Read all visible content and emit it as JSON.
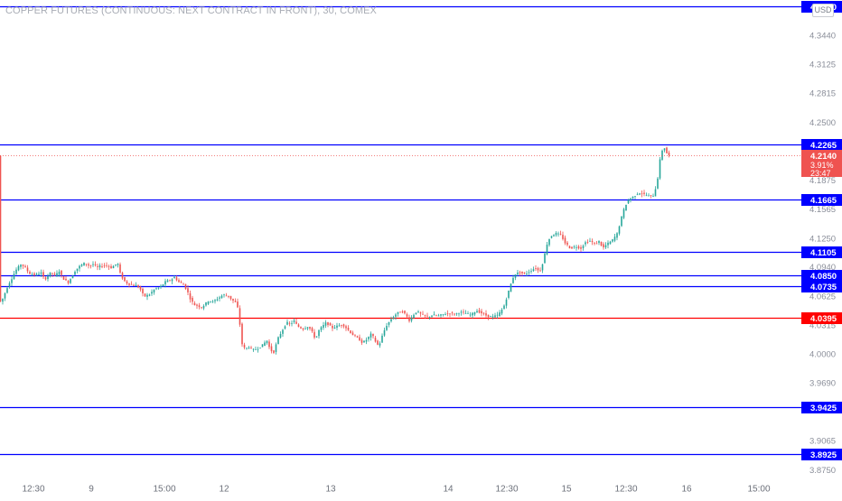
{
  "title": "COPPER FUTURES (CONTINUOUS: NEXT CONTRACT IN FRONT), 30, COMEX",
  "currency": "USD",
  "colors": {
    "up": "#26a69a",
    "down": "#ef5350",
    "hline_blue": "#0000ff",
    "hline_red": "#ff0000",
    "axis_text": "#8a8e99",
    "price_line": "#ef5350"
  },
  "chart_data": {
    "type": "candlestick",
    "title": "COPPER FUTURES (CONTINUOUS: NEXT CONTRACT IN FRONT), 30, COMEX",
    "ylim": [
      3.87,
      4.38
    ],
    "y_ticks": [
      "4.3440",
      "4.3125",
      "4.2815",
      "4.2500",
      "4.1875",
      "4.1565",
      "4.1250",
      "4.0940",
      "4.0625",
      "4.0315",
      "4.0000",
      "3.9690",
      "3.9065",
      "3.8750"
    ],
    "x_ticks": [
      "12:30",
      "9",
      "15:00",
      "12",
      "13",
      "14",
      "12:30",
      "15",
      "12:30",
      "16",
      "15:00"
    ],
    "horizontal_lines": [
      {
        "label": "4.3750",
        "price": 4.375,
        "color": "blue"
      },
      {
        "label": "4.2265",
        "price": 4.2265,
        "color": "blue"
      },
      {
        "label": "4.1665",
        "price": 4.1665,
        "color": "blue"
      },
      {
        "label": "4.1105",
        "price": 4.1105,
        "color": "blue"
      },
      {
        "label": "4.0850",
        "price": 4.085,
        "color": "blue"
      },
      {
        "label": "4.0735",
        "price": 4.0735,
        "color": "blue"
      },
      {
        "label": "4.0395",
        "price": 4.0395,
        "color": "red"
      },
      {
        "label": "3.9425",
        "price": 3.9425,
        "color": "blue"
      },
      {
        "label": "3.8925",
        "price": 3.8925,
        "color": "blue"
      }
    ],
    "last_price": {
      "price": 4.214,
      "label": "4.2140",
      "change": "3.91%",
      "countdown": "23:47"
    },
    "path_points": [
      [
        0,
        4.055
      ],
      [
        4,
        4.06
      ],
      [
        10,
        4.075
      ],
      [
        14,
        4.082
      ],
      [
        18,
        4.09
      ],
      [
        24,
        4.097
      ],
      [
        28,
        4.094
      ],
      [
        33,
        4.087
      ],
      [
        40,
        4.085
      ],
      [
        46,
        4.088
      ],
      [
        50,
        4.08
      ],
      [
        57,
        4.088
      ],
      [
        62,
        4.084
      ],
      [
        66,
        4.09
      ],
      [
        70,
        4.082
      ],
      [
        76,
        4.077
      ],
      [
        80,
        4.083
      ],
      [
        84,
        4.09
      ],
      [
        88,
        4.094
      ],
      [
        94,
        4.098
      ],
      [
        100,
        4.095
      ],
      [
        104,
        4.097
      ],
      [
        108,
        4.093
      ],
      [
        112,
        4.095
      ],
      [
        118,
        4.096
      ],
      [
        124,
        4.093
      ],
      [
        128,
        4.096
      ],
      [
        131,
        4.098
      ],
      [
        134,
        4.086
      ],
      [
        138,
        4.079
      ],
      [
        142,
        4.076
      ],
      [
        148,
        4.074
      ],
      [
        152,
        4.074
      ],
      [
        156,
        4.07
      ],
      [
        160,
        4.062
      ],
      [
        166,
        4.064
      ],
      [
        172,
        4.07
      ],
      [
        178,
        4.072
      ],
      [
        184,
        4.078
      ],
      [
        190,
        4.08
      ],
      [
        194,
        4.083
      ],
      [
        198,
        4.078
      ],
      [
        204,
        4.075
      ],
      [
        208,
        4.068
      ],
      [
        212,
        4.058
      ],
      [
        216,
        4.053
      ],
      [
        220,
        4.052
      ],
      [
        224,
        4.05
      ],
      [
        228,
        4.054
      ],
      [
        232,
        4.058
      ],
      [
        236,
        4.056
      ],
      [
        242,
        4.06
      ],
      [
        248,
        4.064
      ],
      [
        254,
        4.062
      ],
      [
        258,
        4.058
      ],
      [
        262,
        4.055
      ],
      [
        265,
        4.046
      ],
      [
        268,
        4.012
      ],
      [
        272,
        4.005
      ],
      [
        276,
        4.008
      ],
      [
        280,
        4.004
      ],
      [
        286,
        4.006
      ],
      [
        292,
        4.01
      ],
      [
        296,
        4.015
      ],
      [
        300,
        4.004
      ],
      [
        304,
        4.002
      ],
      [
        308,
        4.016
      ],
      [
        314,
        4.027
      ],
      [
        318,
        4.034
      ],
      [
        322,
        4.032
      ],
      [
        326,
        4.036
      ],
      [
        330,
        4.03
      ],
      [
        336,
        4.027
      ],
      [
        342,
        4.03
      ],
      [
        346,
        4.024
      ],
      [
        350,
        4.016
      ],
      [
        354,
        4.026
      ],
      [
        358,
        4.03
      ],
      [
        362,
        4.034
      ],
      [
        368,
        4.028
      ],
      [
        374,
        4.03
      ],
      [
        380,
        4.032
      ],
      [
        386,
        4.026
      ],
      [
        392,
        4.02
      ],
      [
        398,
        4.016
      ],
      [
        402,
        4.012
      ],
      [
        406,
        4.015
      ],
      [
        412,
        4.022
      ],
      [
        416,
        4.014
      ],
      [
        420,
        4.008
      ],
      [
        424,
        4.02
      ],
      [
        428,
        4.03
      ],
      [
        434,
        4.038
      ],
      [
        440,
        4.044
      ],
      [
        446,
        4.046
      ],
      [
        450,
        4.042
      ],
      [
        454,
        4.036
      ],
      [
        458,
        4.042
      ],
      [
        462,
        4.046
      ],
      [
        468,
        4.042
      ],
      [
        474,
        4.04
      ],
      [
        480,
        4.042
      ],
      [
        486,
        4.041
      ],
      [
        492,
        4.043
      ],
      [
        498,
        4.044
      ],
      [
        504,
        4.043
      ],
      [
        510,
        4.045
      ],
      [
        516,
        4.044
      ],
      [
        522,
        4.042
      ],
      [
        528,
        4.047
      ],
      [
        534,
        4.044
      ],
      [
        540,
        4.041
      ],
      [
        546,
        4.04
      ],
      [
        552,
        4.042
      ],
      [
        558,
        4.05
      ],
      [
        562,
        4.062
      ],
      [
        566,
        4.075
      ],
      [
        570,
        4.086
      ],
      [
        576,
        4.088
      ],
      [
        582,
        4.086
      ],
      [
        588,
        4.09
      ],
      [
        594,
        4.093
      ],
      [
        598,
        4.088
      ],
      [
        602,
        4.1
      ],
      [
        606,
        4.118
      ],
      [
        610,
        4.127
      ],
      [
        616,
        4.13
      ],
      [
        622,
        4.128
      ],
      [
        626,
        4.12
      ],
      [
        632,
        4.114
      ],
      [
        638,
        4.116
      ],
      [
        644,
        4.114
      ],
      [
        648,
        4.12
      ],
      [
        654,
        4.122
      ],
      [
        660,
        4.118
      ],
      [
        664,
        4.122
      ],
      [
        668,
        4.114
      ],
      [
        672,
        4.118
      ],
      [
        678,
        4.122
      ],
      [
        684,
        4.13
      ],
      [
        688,
        4.145
      ],
      [
        692,
        4.158
      ],
      [
        696,
        4.166
      ],
      [
        702,
        4.17
      ],
      [
        708,
        4.174
      ],
      [
        714,
        4.172
      ],
      [
        720,
        4.17
      ],
      [
        724,
        4.171
      ],
      [
        728,
        4.184
      ],
      [
        731,
        4.208
      ],
      [
        735,
        4.225
      ],
      [
        739,
        4.216
      ],
      [
        741,
        4.214
      ]
    ]
  }
}
